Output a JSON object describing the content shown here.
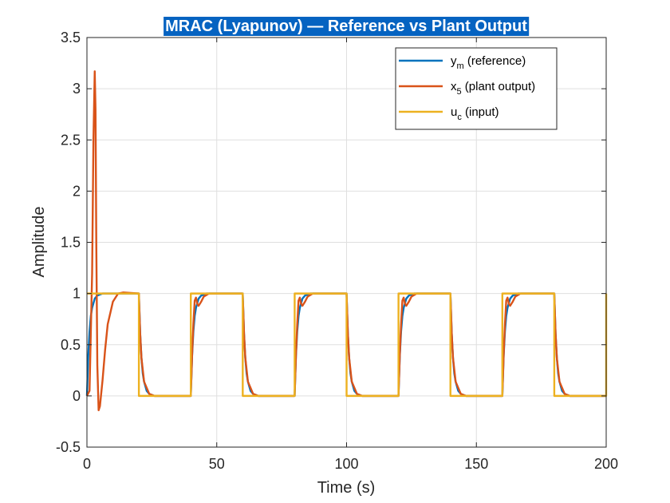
{
  "chart_data": {
    "type": "line",
    "title": "MRAC (Lyapunov) — Reference vs Plant Output",
    "xlabel": "Time (s)",
    "ylabel": "Amplitude",
    "xlim": [
      0,
      200
    ],
    "ylim": [
      -0.5,
      3.5
    ],
    "x_ticks": [
      0,
      50,
      100,
      150,
      200
    ],
    "y_ticks": [
      -0.5,
      0,
      0.5,
      1,
      1.5,
      2,
      2.5,
      3,
      3.5
    ],
    "x_tick_labels": [
      "0",
      "50",
      "100",
      "150",
      "200"
    ],
    "y_tick_labels": [
      "-0.5",
      "0",
      "0.5",
      "1",
      "1.5",
      "2",
      "2.5",
      "3",
      "3.5"
    ],
    "grid": true,
    "legend_position": "top-right",
    "series": [
      {
        "name": "ym (reference)",
        "legend_main": "y",
        "legend_sub": "m",
        "legend_rest": " (reference)",
        "color": "#0072BD",
        "x": [
          0,
          0.5,
          1,
          1.5,
          2,
          3,
          4,
          6,
          20,
          20.5,
          21,
          21.5,
          22,
          23,
          24,
          26,
          40,
          40.5,
          41,
          41.5,
          42,
          43,
          44,
          46,
          60,
          60.5,
          61,
          61.5,
          62,
          63,
          64,
          66,
          80,
          80.5,
          81,
          81.5,
          82,
          83,
          84,
          86,
          100,
          100.5,
          101,
          101.5,
          102,
          103,
          104,
          106,
          120,
          120.5,
          121,
          121.5,
          122,
          123,
          124,
          126,
          140,
          140.5,
          141,
          141.5,
          142,
          143,
          144,
          146,
          160,
          160.5,
          161,
          161.5,
          162,
          163,
          164,
          166,
          180,
          180.5,
          181,
          181.5,
          182,
          183,
          184,
          186,
          200
        ],
        "y": [
          0,
          0.39,
          0.63,
          0.78,
          0.86,
          0.95,
          0.98,
          1,
          1,
          0.61,
          0.37,
          0.22,
          0.14,
          0.05,
          0.02,
          0,
          0,
          0.39,
          0.63,
          0.78,
          0.86,
          0.95,
          0.98,
          1,
          1,
          0.61,
          0.37,
          0.22,
          0.14,
          0.05,
          0.02,
          0,
          0,
          0.39,
          0.63,
          0.78,
          0.86,
          0.95,
          0.98,
          1,
          1,
          0.61,
          0.37,
          0.22,
          0.14,
          0.05,
          0.02,
          0,
          0,
          0.39,
          0.63,
          0.78,
          0.86,
          0.95,
          0.98,
          1,
          1,
          0.61,
          0.37,
          0.22,
          0.14,
          0.05,
          0.02,
          0,
          0,
          0.39,
          0.63,
          0.78,
          0.86,
          0.95,
          0.98,
          1,
          1,
          0.61,
          0.37,
          0.22,
          0.14,
          0.05,
          0.02,
          0,
          0
        ]
      },
      {
        "name": "x5 (plant output)",
        "legend_main": "x",
        "legend_sub": "5",
        "legend_rest": " (plant output)",
        "color": "#D95319",
        "x": [
          0,
          1,
          2,
          2.5,
          3,
          3.3,
          3.6,
          4,
          4.5,
          5,
          6,
          7,
          8,
          10,
          12,
          14,
          20,
          20.5,
          21,
          22,
          24,
          26,
          40,
          40.5,
          41,
          41.5,
          42,
          42.5,
          43,
          44,
          45,
          47,
          50,
          60,
          60.5,
          61,
          62,
          64,
          66,
          80,
          80.5,
          81,
          81.5,
          82,
          82.5,
          83,
          84,
          85,
          87,
          90,
          100,
          100.5,
          101,
          102,
          104,
          106,
          120,
          120.5,
          121,
          121.5,
          122,
          122.5,
          123,
          124,
          125,
          127,
          130,
          140,
          140.5,
          141,
          142,
          144,
          146,
          160,
          160.5,
          161,
          161.5,
          162,
          162.5,
          163,
          164,
          165,
          167,
          170,
          180,
          180.5,
          181,
          182,
          184,
          186,
          200
        ],
        "y": [
          0,
          0.05,
          1.2,
          2.5,
          3.17,
          2.8,
          1.5,
          0.3,
          -0.14,
          -0.1,
          0.15,
          0.45,
          0.7,
          0.92,
          1,
          1.01,
          1,
          0.61,
          0.37,
          0.14,
          0.02,
          0,
          0,
          0.4,
          0.7,
          0.93,
          0.96,
          0.9,
          0.88,
          0.92,
          0.97,
          1,
          1,
          1,
          0.61,
          0.37,
          0.14,
          0.02,
          0,
          0,
          0.4,
          0.7,
          0.93,
          0.96,
          0.9,
          0.88,
          0.92,
          0.97,
          1,
          1,
          1,
          0.61,
          0.37,
          0.14,
          0.02,
          0,
          0,
          0.4,
          0.7,
          0.93,
          0.96,
          0.9,
          0.88,
          0.92,
          0.97,
          1,
          1,
          1,
          0.61,
          0.37,
          0.14,
          0.02,
          0,
          0,
          0.4,
          0.7,
          0.93,
          0.96,
          0.9,
          0.88,
          0.92,
          0.97,
          1,
          1,
          1,
          0.61,
          0.37,
          0.14,
          0.02,
          0,
          0
        ]
      },
      {
        "name": "uc (input)",
        "legend_main": "u",
        "legend_sub": "c",
        "legend_rest": " (input)",
        "color": "#EDB120",
        "x": [
          0,
          0.01,
          20,
          20.01,
          40,
          40.01,
          60,
          60.01,
          80,
          80.01,
          100,
          100.01,
          120,
          120.01,
          140,
          140.01,
          160,
          160.01,
          180,
          180.01,
          199.99,
          200
        ],
        "y": [
          1,
          1,
          1,
          0,
          0,
          1,
          1,
          0,
          0,
          1,
          1,
          0,
          0,
          1,
          1,
          0,
          0,
          1,
          1,
          0,
          0,
          1
        ]
      }
    ]
  },
  "colors": {
    "axis": "#262626",
    "grid": "#DFDFDF",
    "title_background": "#0563C1",
    "title_text": "#FFFFFF"
  }
}
